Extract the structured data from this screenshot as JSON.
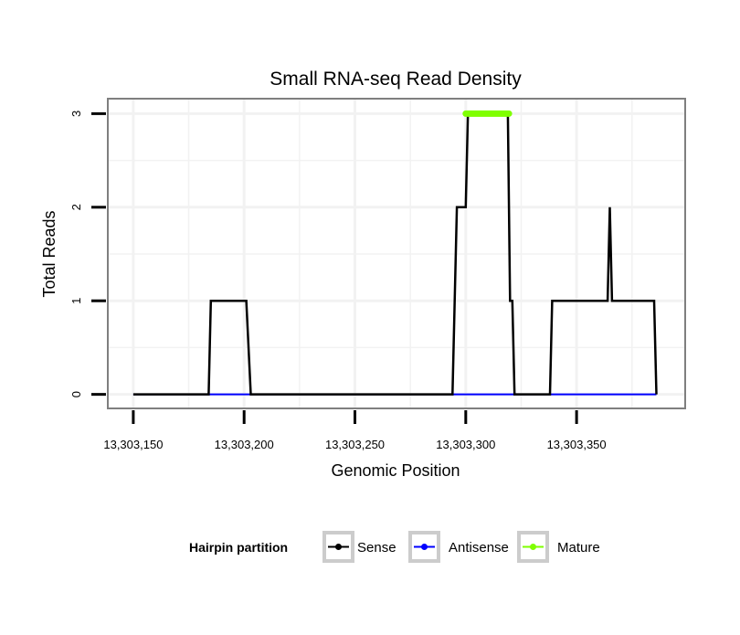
{
  "chart_data": {
    "type": "line",
    "title": "Small RNA-seq Read Density",
    "xlabel": "Genomic Position",
    "ylabel": "Total Reads",
    "xlim": [
      13303138.5,
      13303399
    ],
    "ylim": [
      -0.15,
      3.16
    ],
    "x_ticks": [
      13303150,
      13303200,
      13303250,
      13303300,
      13303350
    ],
    "x_tick_labels": [
      "13,303,150",
      "13,303,200",
      "13,303,250",
      "13,303,300",
      "13,303,350"
    ],
    "y_ticks": [
      0,
      1,
      2,
      3
    ],
    "y_tick_labels": [
      "0",
      "1",
      "2",
      "3"
    ],
    "grid": true,
    "legend": {
      "title": "Hairpin partition",
      "placement": "bottom",
      "entries": [
        "Sense",
        "Antisense",
        "Mature"
      ]
    },
    "series": [
      {
        "name": "Antisense",
        "color": "#0000ff",
        "width": 2,
        "points": [
          [
            13303150,
            0
          ],
          [
            13303386,
            0
          ]
        ]
      },
      {
        "name": "Sense",
        "color": "#000000",
        "width": 2.5,
        "points": [
          [
            13303150,
            0
          ],
          [
            13303184,
            0
          ],
          [
            13303185,
            1
          ],
          [
            13303201,
            1
          ],
          [
            13303203,
            0
          ],
          [
            13303294,
            0
          ],
          [
            13303296,
            2
          ],
          [
            13303300,
            2
          ],
          [
            13303301,
            3
          ],
          [
            13303319,
            3
          ],
          [
            13303320,
            1
          ],
          [
            13303321,
            1
          ],
          [
            13303322,
            0
          ],
          [
            13303338,
            0
          ],
          [
            13303339,
            1
          ],
          [
            13303364,
            1
          ],
          [
            13303365,
            2
          ],
          [
            13303366,
            1
          ],
          [
            13303385,
            1
          ],
          [
            13303386,
            0
          ]
        ]
      },
      {
        "name": "Mature",
        "color": "#7fff00",
        "width": 7,
        "points": [
          [
            13303300,
            3
          ],
          [
            13303319.5,
            3
          ]
        ]
      }
    ]
  }
}
